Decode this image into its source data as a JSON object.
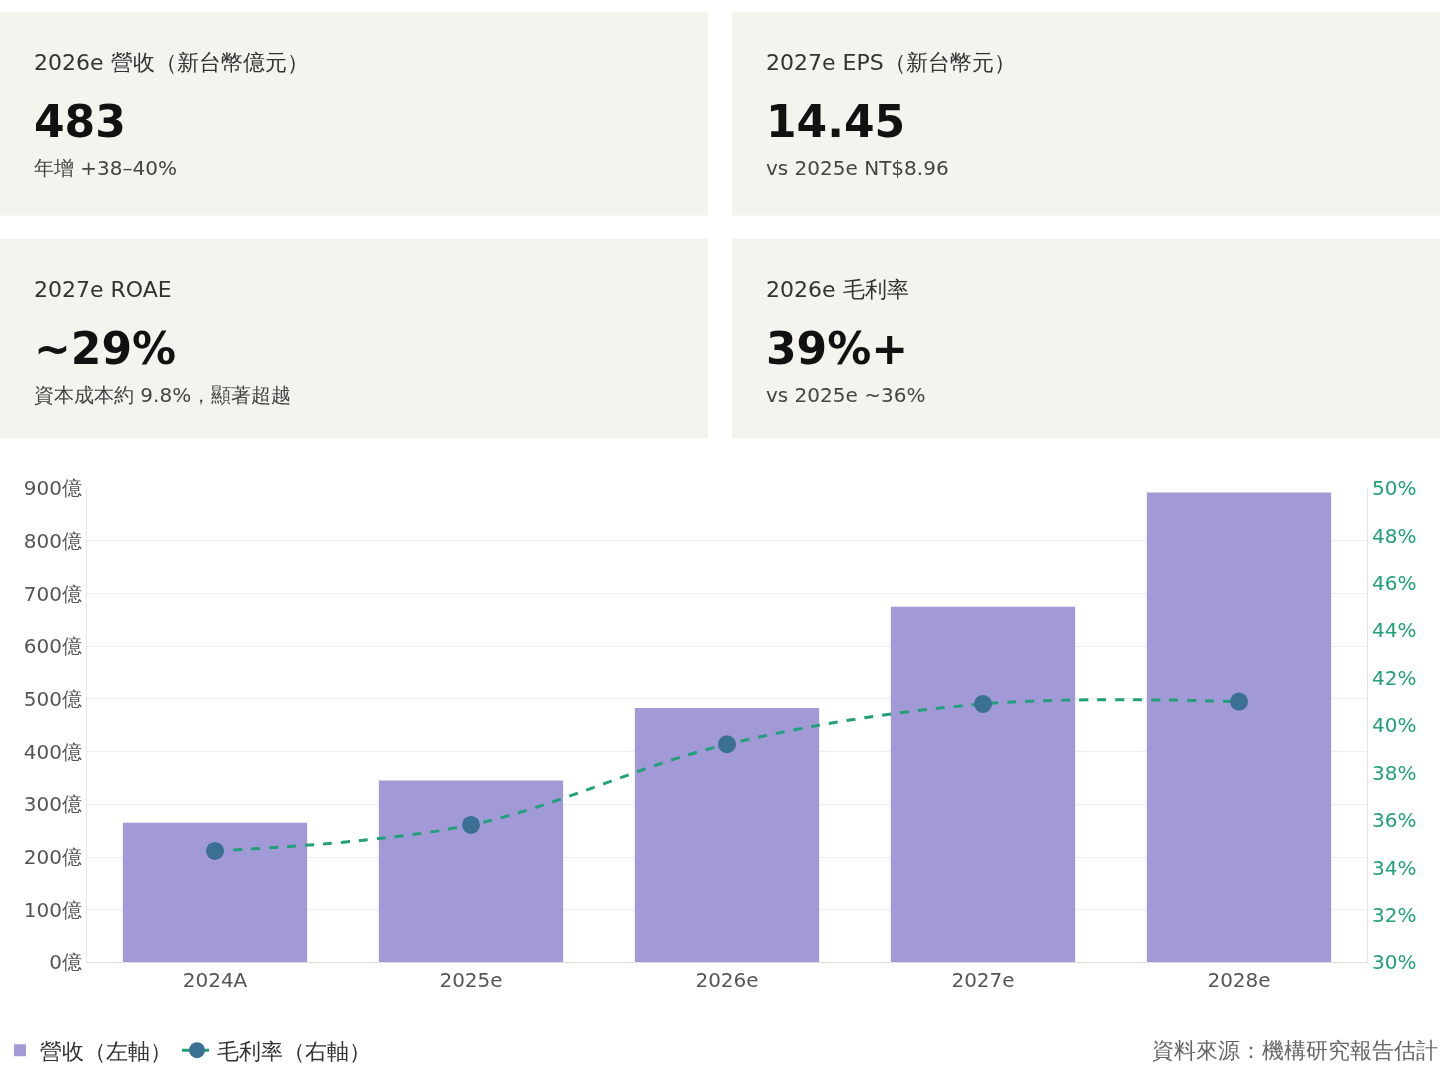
{
  "chart_data": [
    {
      "type": "other",
      "title": "2026e 營收（新台幣億元）",
      "annotations": [
        "483",
        "年增 +38–40%"
      ]
    },
    {
      "type": "other",
      "title": "2027e EPS（新台幣元）",
      "annotations": [
        "14.45",
        "vs 2025e NT$8.96"
      ]
    },
    {
      "type": "other",
      "title": "2027e ROAE",
      "annotations": [
        "~29%",
        "資本成本約 9.8%，顯著超越"
      ]
    },
    {
      "type": "other",
      "title": "2026e 毛利率",
      "annotations": [
        "39%+",
        "vs 2025e ~36%"
      ]
    },
    {
      "type": "bar",
      "categories": [
        "2024A",
        "2025e",
        "2026e",
        "2027e",
        "2028e"
      ],
      "series": [
        {
          "name": "營收（左軸）",
          "color": "#a19ad6",
          "values": [
            265,
            345,
            483,
            675,
            892
          ]
        },
        {
          "name": "毛利率（右軸）",
          "type": "line",
          "axis": "y2",
          "color": "#22a079",
          "colors": [
            "#3a7093",
            "#3a7093",
            "#3a7093",
            "#3a7093",
            "#3a7093"
          ],
          "line_style": "dashed",
          "marker": "circle",
          "values": [
            34.7,
            35.8,
            39.2,
            40.9,
            41.0
          ]
        }
      ],
      "ylim": [
        0,
        900
      ],
      "yticks": [
        {
          "value": 0,
          "label": "0億"
        },
        {
          "value": 100,
          "label": "100億"
        },
        {
          "value": 200,
          "label": "200億"
        },
        {
          "value": 300,
          "label": "300億"
        },
        {
          "value": 400,
          "label": "400億"
        },
        {
          "value": 500,
          "label": "500億"
        },
        {
          "value": 600,
          "label": "600億"
        },
        {
          "value": 700,
          "label": "700億"
        },
        {
          "value": 800,
          "label": "800億"
        },
        {
          "value": 900,
          "label": "900億"
        }
      ],
      "y2lim": [
        30,
        50
      ],
      "y2ticks": [
        {
          "value": 30,
          "label": "30%"
        },
        {
          "value": 32,
          "label": "32%"
        },
        {
          "value": 34,
          "label": "34%"
        },
        {
          "value": 36,
          "label": "36%"
        },
        {
          "value": 38,
          "label": "38%"
        },
        {
          "value": 40,
          "label": "40%"
        },
        {
          "value": 42,
          "label": "42%"
        },
        {
          "value": 44,
          "label": "44%"
        },
        {
          "value": 46,
          "label": "46%"
        },
        {
          "value": 48,
          "label": "48%"
        },
        {
          "value": 50,
          "label": "50%"
        }
      ],
      "grid": "y",
      "legend": "bottom left",
      "annotations": [
        "資料來源：機構研究報告估計"
      ]
    }
  ]
}
